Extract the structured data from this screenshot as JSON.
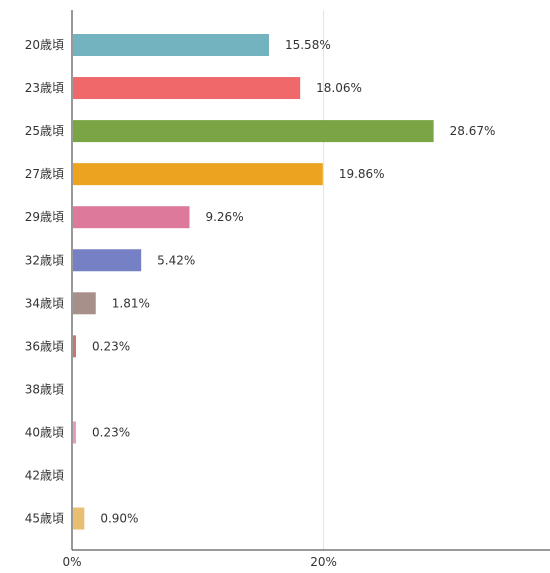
{
  "chart_data": {
    "type": "bar",
    "orientation": "horizontal",
    "title": "",
    "xlabel": "",
    "ylabel": "",
    "categories": [
      "20歳頃",
      "23歳頃",
      "25歳頃",
      "27歳頃",
      "29歳頃",
      "32歳頃",
      "34歳頃",
      "36歳頃",
      "38歳頃",
      "40歳頃",
      "42歳頃",
      "45歳頃"
    ],
    "values": [
      15.58,
      18.06,
      28.67,
      19.86,
      9.26,
      5.42,
      1.81,
      0.23,
      0,
      0.23,
      0,
      0.9
    ],
    "value_labels": [
      "15.58%",
      "18.06%",
      "28.67%",
      "19.86%",
      "9.26%",
      "5.42%",
      "1.81%",
      "0.23%",
      "",
      "0.23%",
      "",
      "0.90%"
    ],
    "colors": [
      "#73b2bf",
      "#f0696a",
      "#7aa544",
      "#eca31f",
      "#dd7a9c",
      "#7680c4",
      "#a8908a",
      "#c8796e",
      "#cccccc",
      "#e39dc0",
      "#cccccc",
      "#e8be72"
    ],
    "xlim": [
      0,
      38
    ],
    "xticks": [
      0,
      20
    ],
    "xtick_labels": [
      "0%",
      "20%"
    ],
    "grid": true,
    "legend": "none"
  }
}
